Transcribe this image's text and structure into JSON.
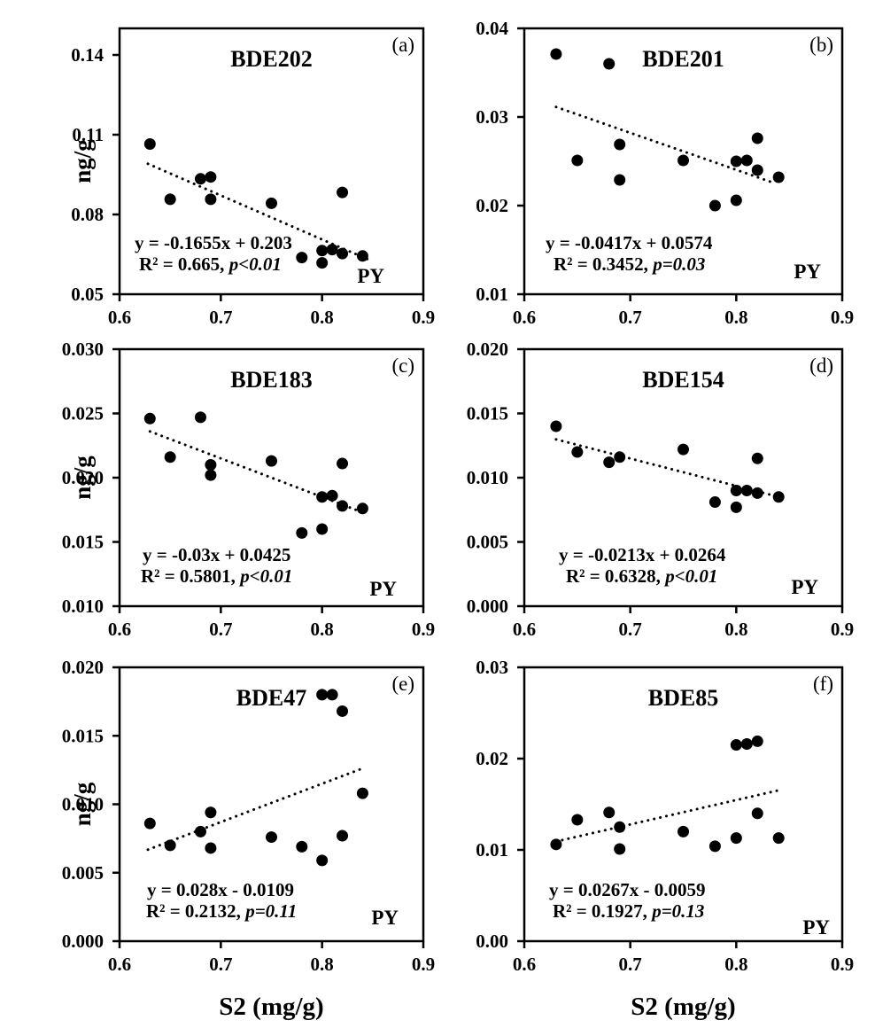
{
  "figure": {
    "background": "#ffffff",
    "ink_color": "#000000",
    "x_axis_title": "S2 (mg/g)",
    "y_axis_label": "ng/g",
    "xlim": [
      0.6,
      0.9
    ],
    "x_ticks": [
      "0.6",
      "0.7",
      "0.8",
      "0.9"
    ]
  },
  "chart_data": [
    {
      "type": "scatter",
      "panel_letter": "(a)",
      "title": "BDE202",
      "site_label": "PY",
      "xlabel": "S2 (mg/g)",
      "ylabel": "ng/g",
      "xlim": [
        0.6,
        0.9
      ],
      "ylim": [
        0.05,
        0.15
      ],
      "x_ticks": [
        "0.6",
        "0.7",
        "0.8",
        "0.9"
      ],
      "y_ticks": [
        "0.05",
        "0.08",
        "0.11",
        "0.14"
      ],
      "equation": "y = -0.1655x + 0.203",
      "r2_label": "R² = 0.665,",
      "p_label": "p<0.01",
      "trend": {
        "slope": -0.1655,
        "intercept": 0.203,
        "x_start": 0.628,
        "x_end": 0.845
      },
      "points": [
        [
          0.63,
          0.1065
        ],
        [
          0.65,
          0.0857
        ],
        [
          0.68,
          0.0934
        ],
        [
          0.69,
          0.0941
        ],
        [
          0.69,
          0.0857
        ],
        [
          0.75,
          0.0842
        ],
        [
          0.78,
          0.0638
        ],
        [
          0.8,
          0.0664
        ],
        [
          0.8,
          0.0618
        ],
        [
          0.81,
          0.0668
        ],
        [
          0.82,
          0.0883
        ],
        [
          0.82,
          0.0653
        ],
        [
          0.84,
          0.0644
        ]
      ]
    },
    {
      "type": "scatter",
      "panel_letter": "(b)",
      "title": "BDE201",
      "site_label": "PY",
      "xlabel": "S2 (mg/g)",
      "ylabel": "ng/g",
      "xlim": [
        0.6,
        0.9
      ],
      "ylim": [
        0.01,
        0.04
      ],
      "x_ticks": [
        "0.6",
        "0.7",
        "0.8",
        "0.9"
      ],
      "y_ticks": [
        "0.01",
        "0.02",
        "0.03",
        "0.04"
      ],
      "equation": "y = -0.0417x + 0.0574",
      "r2_label": "R² = 0.3452,",
      "p_label": "p=0.03",
      "trend": {
        "slope": -0.0417,
        "intercept": 0.0574,
        "x_start": 0.63,
        "x_end": 0.836
      },
      "points": [
        [
          0.63,
          0.0371
        ],
        [
          0.68,
          0.036
        ],
        [
          0.65,
          0.0251
        ],
        [
          0.69,
          0.0269
        ],
        [
          0.69,
          0.0229
        ],
        [
          0.75,
          0.0251
        ],
        [
          0.78,
          0.02
        ],
        [
          0.8,
          0.0206
        ],
        [
          0.8,
          0.025
        ],
        [
          0.81,
          0.0251
        ],
        [
          0.82,
          0.0276
        ],
        [
          0.82,
          0.024
        ],
        [
          0.84,
          0.0232
        ]
      ]
    },
    {
      "type": "scatter",
      "panel_letter": "(c)",
      "title": "BDE183",
      "site_label": "PY",
      "xlabel": "S2 (mg/g)",
      "ylabel": "ng/g",
      "xlim": [
        0.6,
        0.9
      ],
      "ylim": [
        0.01,
        0.03
      ],
      "x_ticks": [
        "0.6",
        "0.7",
        "0.8",
        "0.9"
      ],
      "y_ticks": [
        "0.010",
        "0.015",
        "0.020",
        "0.025",
        "0.030"
      ],
      "equation": "y = -0.03x + 0.0425",
      "r2_label": "R² = 0.5801,",
      "p_label": "p<0.01",
      "trend": {
        "slope": -0.03,
        "intercept": 0.0425,
        "x_start": 0.63,
        "x_end": 0.838
      },
      "points": [
        [
          0.63,
          0.0246
        ],
        [
          0.65,
          0.0216
        ],
        [
          0.68,
          0.0247
        ],
        [
          0.69,
          0.021
        ],
        [
          0.69,
          0.0202
        ],
        [
          0.75,
          0.0213
        ],
        [
          0.78,
          0.0157
        ],
        [
          0.8,
          0.0185
        ],
        [
          0.8,
          0.016
        ],
        [
          0.81,
          0.0186
        ],
        [
          0.82,
          0.0211
        ],
        [
          0.82,
          0.0178
        ],
        [
          0.84,
          0.0176
        ]
      ]
    },
    {
      "type": "scatter",
      "panel_letter": "(d)",
      "title": "BDE154",
      "site_label": "PY",
      "xlabel": "S2 (mg/g)",
      "ylabel": "ng/g",
      "xlim": [
        0.6,
        0.9
      ],
      "ylim": [
        0.0,
        0.02
      ],
      "x_ticks": [
        "0.6",
        "0.7",
        "0.8",
        "0.9"
      ],
      "y_ticks": [
        "0.000",
        "0.005",
        "0.010",
        "0.015",
        "0.020"
      ],
      "equation": "y = -0.0213x + 0.0264",
      "r2_label": "R² = 0.6328,",
      "p_label": "p<0.01",
      "trend": {
        "slope": -0.0213,
        "intercept": 0.0264,
        "x_start": 0.63,
        "x_end": 0.842
      },
      "points": [
        [
          0.63,
          0.014
        ],
        [
          0.65,
          0.012
        ],
        [
          0.68,
          0.0112
        ],
        [
          0.69,
          0.0116
        ],
        [
          0.75,
          0.0122
        ],
        [
          0.78,
          0.0081
        ],
        [
          0.8,
          0.009
        ],
        [
          0.8,
          0.0077
        ],
        [
          0.81,
          0.009
        ],
        [
          0.82,
          0.0088
        ],
        [
          0.82,
          0.0115
        ],
        [
          0.84,
          0.0085
        ]
      ]
    },
    {
      "type": "scatter",
      "panel_letter": "(e)",
      "title": "BDE47",
      "site_label": "PY",
      "xlabel": "S2 (mg/g)",
      "ylabel": "ng/g",
      "xlim": [
        0.6,
        0.9
      ],
      "ylim": [
        0.0,
        0.02
      ],
      "x_ticks": [
        "0.6",
        "0.7",
        "0.8",
        "0.9"
      ],
      "y_ticks": [
        "0.000",
        "0.005",
        "0.010",
        "0.015",
        "0.020"
      ],
      "equation": "y = 0.028x - 0.0109",
      "r2_label": "R² = 0.2132,",
      "p_label": "p=0.11",
      "trend": {
        "slope": 0.028,
        "intercept": -0.0109,
        "x_start": 0.628,
        "x_end": 0.838
      },
      "points": [
        [
          0.63,
          0.0086
        ],
        [
          0.65,
          0.007
        ],
        [
          0.68,
          0.008
        ],
        [
          0.69,
          0.0094
        ],
        [
          0.69,
          0.0068
        ],
        [
          0.75,
          0.0076
        ],
        [
          0.78,
          0.0069
        ],
        [
          0.8,
          0.0059
        ],
        [
          0.8,
          0.018
        ],
        [
          0.81,
          0.018
        ],
        [
          0.82,
          0.0168
        ],
        [
          0.82,
          0.0077
        ],
        [
          0.84,
          0.0108
        ]
      ]
    },
    {
      "type": "scatter",
      "panel_letter": "(f)",
      "title": "BDE85",
      "site_label": "PY",
      "xlabel": "S2 (mg/g)",
      "ylabel": "ng/g",
      "xlim": [
        0.6,
        0.9
      ],
      "ylim": [
        0.0,
        0.03
      ],
      "x_ticks": [
        "0.6",
        "0.7",
        "0.8",
        "0.9"
      ],
      "y_ticks": [
        "0.00",
        "0.01",
        "0.02",
        "0.03"
      ],
      "equation": "y = 0.0267x - 0.0059",
      "r2_label": "R² = 0.1927,",
      "p_label": "p=0.13",
      "trend": {
        "slope": 0.0267,
        "intercept": -0.0059,
        "x_start": 0.63,
        "x_end": 0.84
      },
      "points": [
        [
          0.63,
          0.0106
        ],
        [
          0.65,
          0.0133
        ],
        [
          0.68,
          0.0141
        ],
        [
          0.69,
          0.0125
        ],
        [
          0.69,
          0.0101
        ],
        [
          0.75,
          0.012
        ],
        [
          0.78,
          0.0104
        ],
        [
          0.8,
          0.0215
        ],
        [
          0.81,
          0.0216
        ],
        [
          0.82,
          0.0219
        ],
        [
          0.8,
          0.0113
        ],
        [
          0.82,
          0.014
        ],
        [
          0.84,
          0.0113
        ]
      ]
    }
  ]
}
